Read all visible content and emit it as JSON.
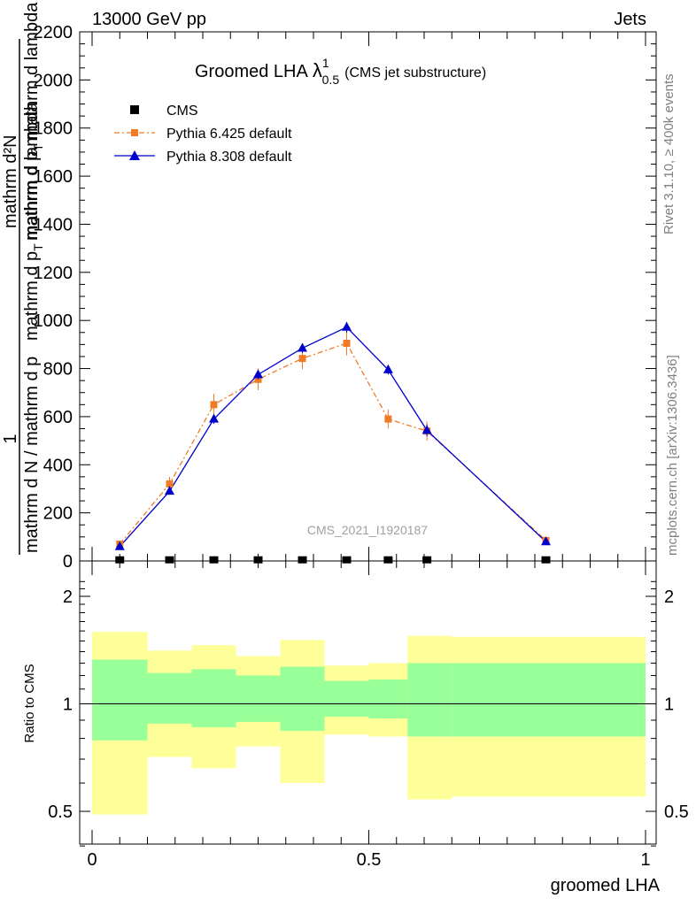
{
  "header": {
    "left": "13000 GeV pp",
    "right": "Jets"
  },
  "side_labels": {
    "rivet": "Rivet 3.1.10, ≥ 400k events",
    "source": "mcplots.cern.ch [arXiv:1306.3436]"
  },
  "chart_data": {
    "type": "line",
    "title_main": "Groomed LHA",
    "title_symbol": "λ",
    "title_sup": "1",
    "title_sub": "0.5",
    "title_note": "(CMS jet substructure)",
    "watermark": "CMS_2021_I1920187",
    "xlabel": "groomed LHA",
    "ylabel_top": "1",
    "ylabel_bottom": "mathrm d N / mathrm d p",
    "ylabel_top_overlap": "mathrm d",
    "ylabel_num": "mathrm d²N",
    "ylabel_den": "mathrm d p",
    "ylabel_den_sub": "T",
    "ylabel_den_rest": "mathrm d lambda",
    "ylabel_mid": "mathrm d p",
    "ylabel_mid_sub": "T",
    "ylabel_mid_rest": "mathrm d lambda",
    "xlim": [
      0,
      1
    ],
    "ylim": [
      0,
      2200
    ],
    "y_ticks": [
      "0",
      "200",
      "400",
      "600",
      "800",
      "1000",
      "1200",
      "1400",
      "1600",
      "1800",
      "2000",
      "2200"
    ],
    "x_ticks": [
      "0",
      "0.5",
      "1"
    ],
    "legend_position": "top-left",
    "bin_edges": [
      0,
      0.1,
      0.18,
      0.26,
      0.34,
      0.42,
      0.5,
      0.57,
      0.65,
      1.0
    ],
    "x": [
      0.05,
      0.14,
      0.22,
      0.3,
      0.38,
      0.46,
      0.535,
      0.605,
      0.82
    ],
    "series": [
      {
        "name": "CMS",
        "color": "#000000",
        "marker": "square",
        "values": [
          1,
          1,
          1,
          1,
          1,
          1,
          1,
          1,
          1
        ]
      },
      {
        "name": "Pythia 6.425 default",
        "color": "#f07b27",
        "marker": "square",
        "values": [
          70,
          320,
          650,
          755,
          842,
          905,
          590,
          540,
          85
        ],
        "errors": [
          12,
          30,
          45,
          45,
          45,
          50,
          40,
          40,
          8
        ]
      },
      {
        "name": "Pythia 8.308 default",
        "color": "#0000cc",
        "marker": "triangle",
        "values": [
          60,
          290,
          590,
          775,
          885,
          972,
          795,
          543,
          80
        ],
        "errors": [
          8,
          15,
          20,
          20,
          20,
          22,
          20,
          25,
          5
        ]
      }
    ],
    "ratio": {
      "ylabel": "Ratio to CMS",
      "ylim": [
        0.35,
        2.3
      ],
      "y_ticks": [
        "0.5",
        "1",
        "2"
      ],
      "band_color_1sigma": "#99ff99",
      "band_color_2sigma": "#ffff99",
      "band_2sigma_low": [
        0.49,
        0.71,
        0.66,
        0.76,
        0.6,
        0.82,
        0.81,
        0.54,
        0.55
      ],
      "band_2sigma_high": [
        1.59,
        1.41,
        1.46,
        1.36,
        1.51,
        1.28,
        1.3,
        1.55,
        1.54
      ],
      "band_1sigma_low": [
        0.79,
        0.88,
        0.86,
        0.89,
        0.84,
        0.92,
        0.91,
        0.81,
        0.81
      ],
      "band_1sigma_high": [
        1.33,
        1.22,
        1.25,
        1.2,
        1.27,
        1.16,
        1.17,
        1.3,
        1.3
      ]
    }
  }
}
